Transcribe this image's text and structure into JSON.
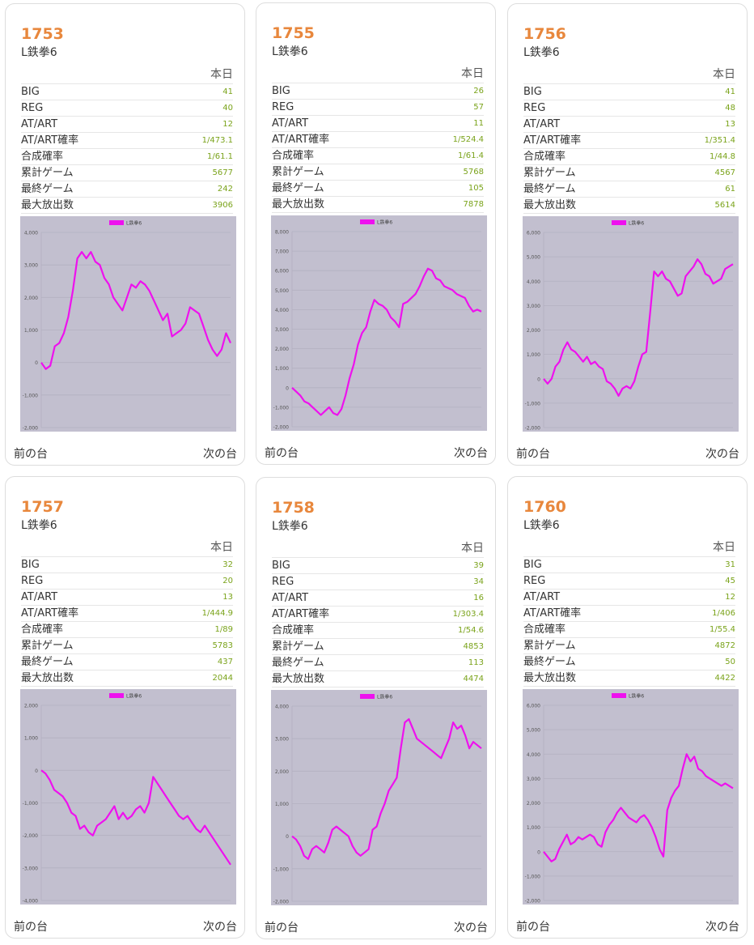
{
  "header_label": "本日",
  "nav": {
    "prev": "前の台",
    "next": "次の台"
  },
  "stat_labels": [
    "BIG",
    "REG",
    "AT/ART",
    "AT/ART確率",
    "合成確率",
    "累計ゲーム",
    "最終ゲーム",
    "最大放出数"
  ],
  "colors": {
    "unit_number": "#e8873c",
    "value": "#7aa31a",
    "plot_bg": "#c2bfcf",
    "line": "#ee11ee"
  },
  "cards": [
    {
      "unit": "1753",
      "machine": "L鉄拳6",
      "stats": [
        "41",
        "40",
        "12",
        "1/473.1",
        "1/61.1",
        "5677",
        "242",
        "3906"
      ]
    },
    {
      "unit": "1755",
      "machine": "L鉄拳6",
      "stats": [
        "26",
        "57",
        "11",
        "1/524.4",
        "1/61.4",
        "5768",
        "105",
        "7878"
      ]
    },
    {
      "unit": "1756",
      "machine": "L鉄拳6",
      "stats": [
        "41",
        "48",
        "13",
        "1/351.4",
        "1/44.8",
        "4567",
        "61",
        "5614"
      ]
    },
    {
      "unit": "1757",
      "machine": "L鉄拳6",
      "stats": [
        "32",
        "20",
        "13",
        "1/444.9",
        "1/89",
        "5783",
        "437",
        "2044"
      ]
    },
    {
      "unit": "1758",
      "machine": "L鉄拳6",
      "stats": [
        "39",
        "34",
        "16",
        "1/303.4",
        "1/54.6",
        "4853",
        "113",
        "4474"
      ]
    },
    {
      "unit": "1760",
      "machine": "L鉄拳6",
      "stats": [
        "31",
        "45",
        "12",
        "1/406",
        "1/55.4",
        "4872",
        "50",
        "4422"
      ]
    }
  ],
  "chart_data": [
    {
      "type": "line",
      "legend": "L鉄拳6",
      "legend_position": "top-center",
      "grid": true,
      "ylim": [
        -2000,
        4000
      ],
      "ytick_labels": [
        "4,000",
        "3,000",
        "2,000",
        "1,000",
        "0",
        "-1,000",
        "-2,000"
      ],
      "series": [
        {
          "name": "L鉄拳6",
          "values": [
            0,
            -200,
            -100,
            500,
            600,
            900,
            1400,
            2200,
            3200,
            3400,
            3200,
            3400,
            3100,
            3000,
            2600,
            2400,
            2000,
            1800,
            1600,
            2000,
            2400,
            2300,
            2500,
            2400,
            2200,
            1900,
            1600,
            1300,
            1500,
            800,
            900,
            1000,
            1200,
            1700,
            1600,
            1500,
            1100,
            700,
            400,
            200,
            400,
            900,
            600
          ]
        }
      ]
    },
    {
      "type": "line",
      "legend": "L鉄拳6",
      "legend_position": "top-center",
      "grid": true,
      "ylim": [
        -2000,
        8000
      ],
      "ytick_labels": [
        "8,000",
        "7,000",
        "6,000",
        "5,000",
        "4,000",
        "3,000",
        "2,000",
        "1,000",
        "0",
        "-1,000",
        "-2,000"
      ],
      "series": [
        {
          "name": "L鉄拳6",
          "values": [
            0,
            -200,
            -400,
            -700,
            -800,
            -1000,
            -1200,
            -1400,
            -1200,
            -1000,
            -1300,
            -1400,
            -1100,
            -400,
            500,
            1200,
            2200,
            2800,
            3100,
            3900,
            4500,
            4300,
            4200,
            4000,
            3600,
            3400,
            3100,
            4300,
            4400,
            4600,
            4800,
            5200,
            5700,
            6100,
            6000,
            5600,
            5500,
            5200,
            5100,
            5000,
            4800,
            4700,
            4600,
            4200,
            3900,
            4000,
            3900
          ]
        }
      ]
    },
    {
      "type": "line",
      "legend": "L鉄拳6",
      "legend_position": "top-center",
      "grid": true,
      "ylim": [
        -2000,
        6000
      ],
      "ytick_labels": [
        "6,000",
        "5,000",
        "4,000",
        "3,000",
        "2,000",
        "1,000",
        "0",
        "-1,000",
        "-2,000"
      ],
      "series": [
        {
          "name": "L鉄拳6",
          "values": [
            0,
            -200,
            0,
            500,
            700,
            1200,
            1500,
            1200,
            1100,
            900,
            700,
            900,
            600,
            700,
            500,
            400,
            -100,
            -200,
            -400,
            -700,
            -400,
            -300,
            -400,
            -100,
            500,
            1000,
            1100,
            2700,
            4400,
            4200,
            4400,
            4100,
            4000,
            3700,
            3400,
            3500,
            4200,
            4400,
            4600,
            4900,
            4700,
            4300,
            4200,
            3900,
            4000,
            4100,
            4500,
            4600,
            4700
          ]
        }
      ]
    },
    {
      "type": "line",
      "legend": "L鉄拳6",
      "legend_position": "top-center",
      "grid": true,
      "ylim": [
        -4000,
        2000
      ],
      "ytick_labels": [
        "2,000",
        "1,000",
        "0",
        "-1,000",
        "-2,000",
        "-3,000",
        "-4,000"
      ],
      "series": [
        {
          "name": "L鉄拳6",
          "values": [
            0,
            -100,
            -300,
            -600,
            -700,
            -800,
            -1000,
            -1300,
            -1400,
            -1800,
            -1700,
            -1900,
            -2000,
            -1700,
            -1600,
            -1500,
            -1300,
            -1100,
            -1500,
            -1300,
            -1500,
            -1400,
            -1200,
            -1100,
            -1300,
            -1000,
            -200,
            -400,
            -600,
            -800,
            -1000,
            -1200,
            -1400,
            -1500,
            -1400,
            -1600,
            -1800,
            -1900,
            -1700,
            -1900,
            -2100,
            -2300,
            -2500,
            -2700,
            -2900
          ]
        }
      ]
    },
    {
      "type": "line",
      "legend": "L鉄拳6",
      "legend_position": "top-center",
      "grid": true,
      "ylim": [
        -2000,
        4000
      ],
      "ytick_labels": [
        "4,000",
        "3,000",
        "2,000",
        "1,000",
        "0",
        "-1,000",
        "-2,000"
      ],
      "series": [
        {
          "name": "L鉄拳6",
          "values": [
            0,
            -100,
            -300,
            -600,
            -700,
            -400,
            -300,
            -400,
            -500,
            -200,
            200,
            300,
            200,
            100,
            0,
            -300,
            -500,
            -600,
            -500,
            -400,
            200,
            300,
            700,
            1000,
            1400,
            1600,
            1800,
            2700,
            3500,
            3600,
            3300,
            3000,
            2900,
            2800,
            2700,
            2600,
            2500,
            2400,
            2700,
            3000,
            3500,
            3300,
            3400,
            3100,
            2700,
            2900,
            2800,
            2700
          ]
        }
      ]
    },
    {
      "type": "line",
      "legend": "L鉄拳6",
      "legend_position": "top-center",
      "grid": true,
      "ylim": [
        -2000,
        6000
      ],
      "ytick_labels": [
        "6,000",
        "5,000",
        "4,000",
        "3,000",
        "2,000",
        "1,000",
        "0",
        "-1,000",
        "-2,000"
      ],
      "series": [
        {
          "name": "L鉄拳6",
          "values": [
            0,
            -200,
            -400,
            -300,
            100,
            400,
            700,
            300,
            400,
            600,
            500,
            600,
            700,
            600,
            300,
            200,
            800,
            1100,
            1300,
            1600,
            1800,
            1600,
            1400,
            1300,
            1200,
            1400,
            1500,
            1300,
            1000,
            600,
            100,
            -200,
            1700,
            2200,
            2500,
            2700,
            3400,
            4000,
            3700,
            3900,
            3400,
            3300,
            3100,
            3000,
            2900,
            2800,
            2700,
            2800,
            2700,
            2600
          ]
        }
      ]
    }
  ]
}
